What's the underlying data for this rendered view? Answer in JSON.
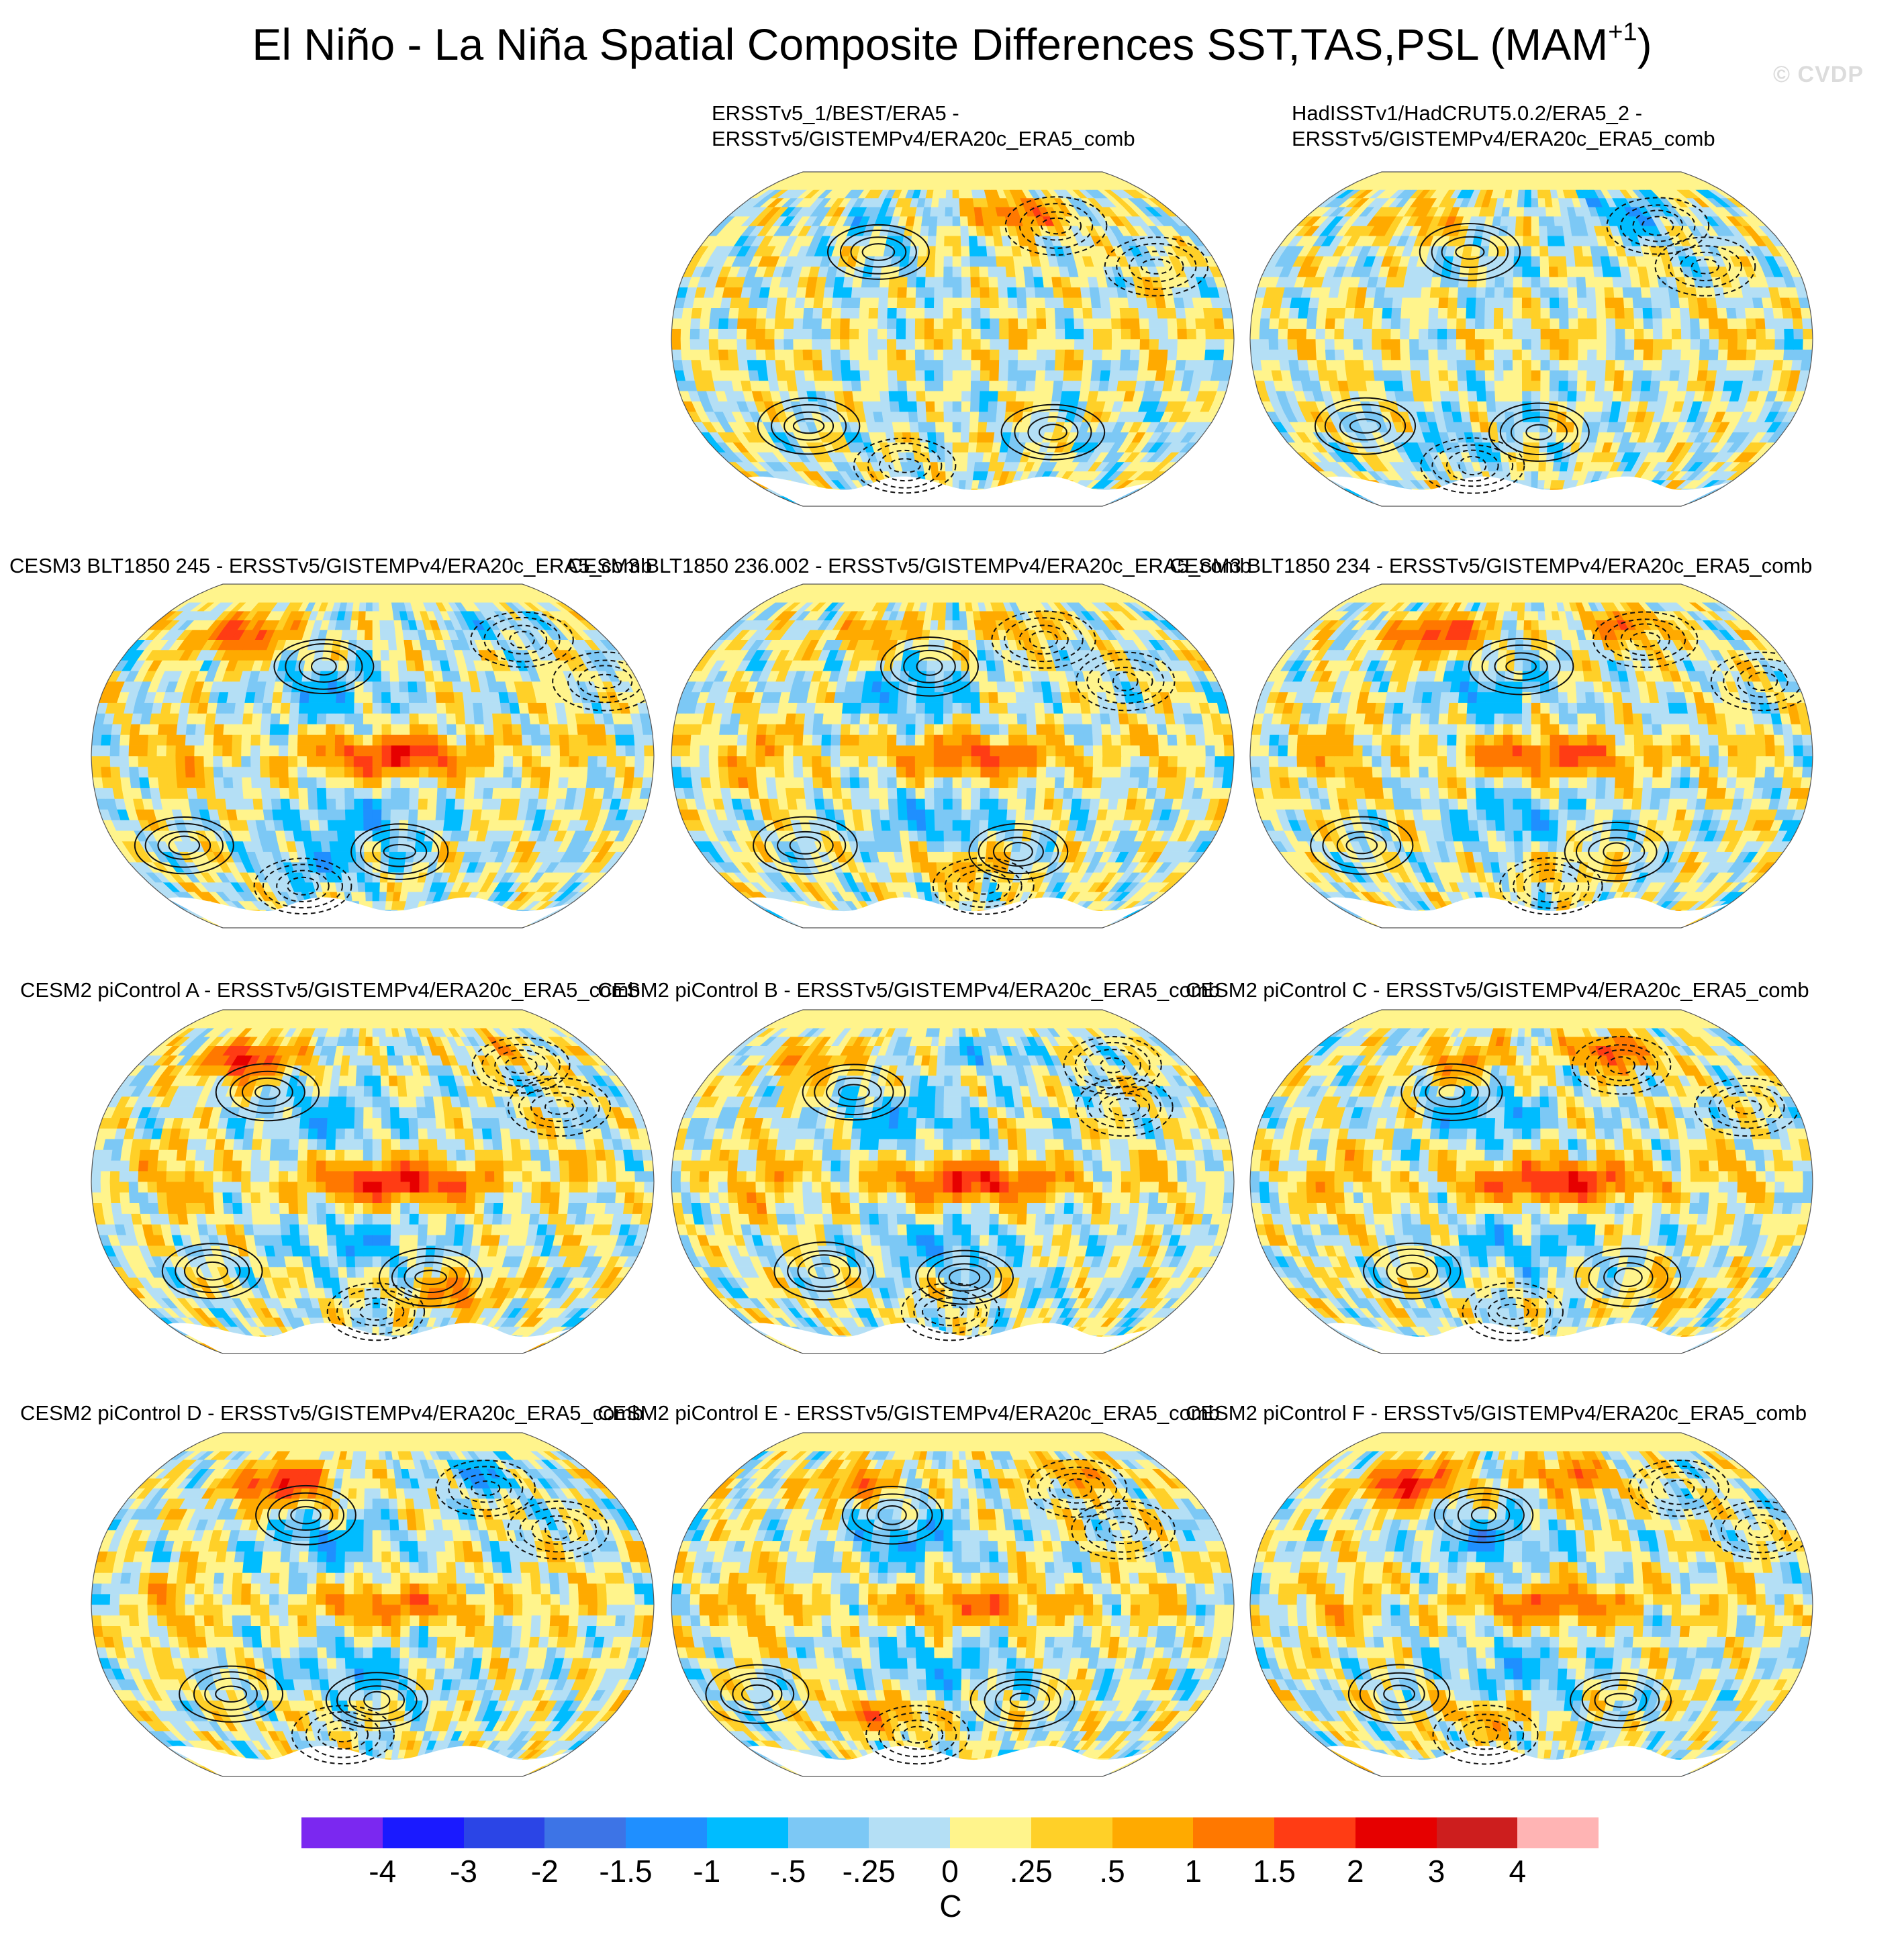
{
  "chart_data": {
    "type": "heatmap",
    "title": "El Niño - La Niña Spatial Composite Differences SST,TAS,PSL (MAM",
    "title_superscript": "+1",
    "title_end": ")",
    "watermark": "© CVDP",
    "projection": "Robinson (global map, 0–360°E, centered Pacific)",
    "fill_variable": "SST/TAS difference",
    "contour_variable": "PSL difference (solid positive, dashed negative)",
    "colorbar": {
      "unit": "C",
      "ticks": [
        "-4",
        "-3",
        "-2",
        "-1.5",
        "-1",
        "-.5",
        "-.25",
        "0",
        ".25",
        ".5",
        "1",
        "1.5",
        "2",
        "3",
        "4"
      ],
      "colors": [
        "#7b28f0",
        "#1a1aff",
        "#2b45e6",
        "#3d74e6",
        "#1f8fff",
        "#00bcff",
        "#7cc8f5",
        "#b4dff5",
        "#fff48c",
        "#ffd028",
        "#ffaa00",
        "#ff7800",
        "#ff3c14",
        "#e60000",
        "#cd1e1e",
        "#ffb4b4"
      ]
    },
    "panels": [
      {
        "id": "obs1",
        "label_line1": "ERSSTv5_1/BEST/ERA5 -",
        "label_line2": "ERSSTv5/GISTEMPv4/ERA20c_ERA5_comb",
        "nino_strength": 0.25,
        "seed": 3
      },
      {
        "id": "obs2",
        "label_line1": "HadISSTv1/HadCRUT5.0.2/ERA5_2 -",
        "label_line2": "ERSSTv5/GISTEMPv4/ERA20c_ERA5_comb",
        "nino_strength": 0.3,
        "seed": 7
      },
      {
        "id": "m1",
        "label_line1": "CESM3 BLT1850 245 - ERSSTv5/GISTEMPv4/ERA20c_ERA5_comb",
        "label_line2": "",
        "nino_strength": 1.9,
        "seed": 11
      },
      {
        "id": "m2",
        "label_line1": "CESM3 BLT1850 236.002 - ERSSTv5/GISTEMPv4/ERA20c_ERA5_comb",
        "label_line2": "",
        "nino_strength": 1.6,
        "seed": 19
      },
      {
        "id": "m3",
        "label_line1": "CESM3 BLT1850 234 - ERSSTv5/GISTEMPv4/ERA20c_ERA5_comb",
        "label_line2": "",
        "nino_strength": 1.7,
        "seed": 23
      },
      {
        "id": "m4",
        "label_line1": "CESM2 piControl A - ERSSTv5/GISTEMPv4/ERA20c_ERA5_comb",
        "label_line2": "",
        "nino_strength": 2.2,
        "seed": 29
      },
      {
        "id": "m5",
        "label_line1": "CESM2 piControl B - ERSSTv5/GISTEMPv4/ERA20c_ERA5_comb",
        "label_line2": "",
        "nino_strength": 2.0,
        "seed": 31
      },
      {
        "id": "m6",
        "label_line1": "CESM2 piControl C - ERSSTv5/GISTEMPv4/ERA20c_ERA5_comb",
        "label_line2": "",
        "nino_strength": 2.1,
        "seed": 37
      },
      {
        "id": "m7",
        "label_line1": "CESM2 piControl D - ERSSTv5/GISTEMPv4/ERA20c_ERA5_comb",
        "label_line2": "",
        "nino_strength": 1.2,
        "seed": 41
      },
      {
        "id": "m8",
        "label_line1": "CESM2 piControl E - ERSSTv5/GISTEMPv4/ERA20c_ERA5_comb",
        "label_line2": "",
        "nino_strength": 1.3,
        "seed": 43
      },
      {
        "id": "m9",
        "label_line1": "CESM2 piControl F - ERSSTv5/GISTEMPv4/ERA20c_ERA5_comb",
        "label_line2": "",
        "nino_strength": 1.4,
        "seed": 47
      }
    ]
  }
}
